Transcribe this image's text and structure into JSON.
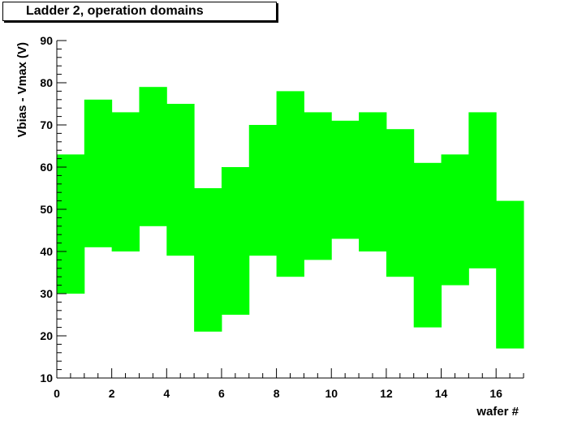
{
  "chart_data": {
    "type": "bar",
    "subtype": "floating-range",
    "title": "Ladder  2, operation domains",
    "xlabel": "wafer #",
    "ylabel": "Vbias - Vmax (V)",
    "xlim": [
      0,
      17
    ],
    "ylim": [
      10,
      90
    ],
    "xticks_major": [
      0,
      2,
      4,
      6,
      8,
      10,
      12,
      14,
      16
    ],
    "yticks_major": [
      10,
      20,
      30,
      40,
      50,
      60,
      70,
      80,
      90
    ],
    "x_bins": [
      0,
      1,
      2,
      3,
      4,
      5,
      6,
      7,
      8,
      9,
      10,
      11,
      12,
      13,
      14,
      15,
      16
    ],
    "bin_width": 1,
    "lower": [
      30,
      41,
      40,
      46,
      39,
      21,
      25,
      39,
      34,
      38,
      43,
      40,
      34,
      22,
      32,
      36,
      17
    ],
    "upper": [
      63,
      76,
      73,
      79,
      75,
      55,
      60,
      70,
      78,
      73,
      71,
      73,
      69,
      61,
      63,
      73,
      52
    ],
    "fill_color": "#00ff00",
    "grid": false,
    "legend": "none"
  }
}
